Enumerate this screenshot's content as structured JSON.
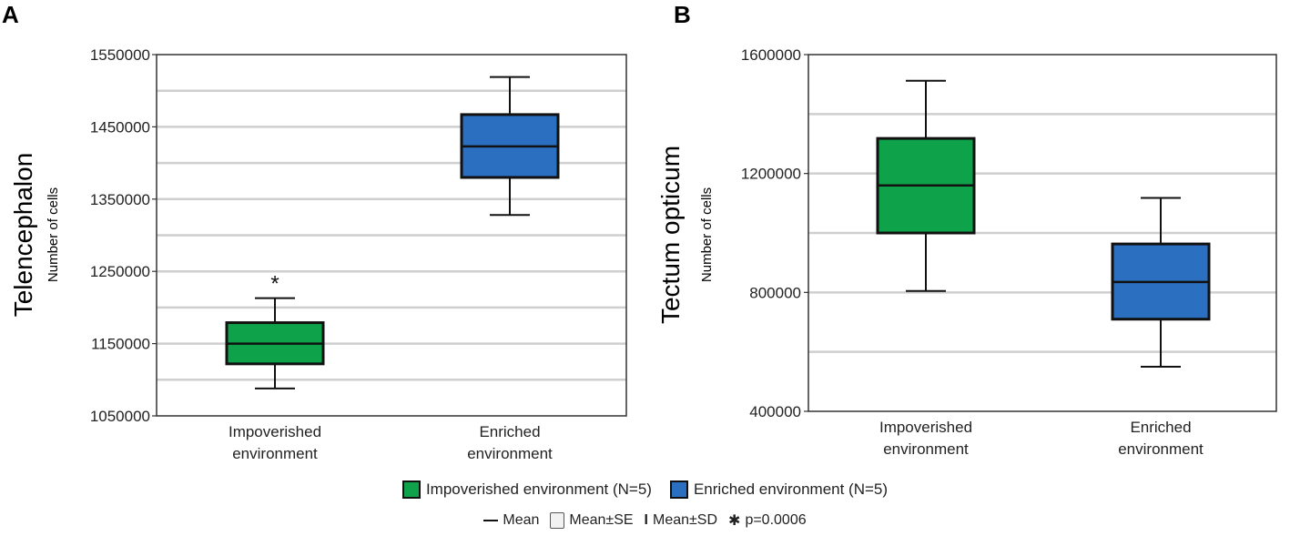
{
  "panels": [
    {
      "letter": "A",
      "region_label": "Telencephalon",
      "ylabel": "Number of cells",
      "chart_data": {
        "type": "box",
        "title": "Telencephalon",
        "ylabel": "Number of cells",
        "ylim": [
          1050000,
          1550000
        ],
        "y_ticks": [
          1050000,
          1150000,
          1250000,
          1350000,
          1450000,
          1550000
        ],
        "y_tick_labels": [
          "1050000",
          "1150000",
          "1250000",
          "1350000",
          "1450000",
          "1550000"
        ],
        "gridline_step": 50000,
        "categories": [
          "Impoverished environment",
          "Enriched environment"
        ],
        "category_lines": [
          [
            "Impoverished",
            "environment"
          ],
          [
            "Enriched",
            "environment"
          ]
        ],
        "series": [
          {
            "name": "Impoverished environment",
            "color": "#0ea34a",
            "mean": 1150000,
            "se_low": 1122000,
            "se_high": 1179000,
            "sd_low": 1088000,
            "sd_high": 1213000,
            "annotation": "*"
          },
          {
            "name": "Enriched environment",
            "color": "#2a6fc0",
            "mean": 1423000,
            "se_low": 1380000,
            "se_high": 1467000,
            "sd_low": 1328000,
            "sd_high": 1519000,
            "annotation": ""
          }
        ]
      }
    },
    {
      "letter": "B",
      "region_label": "Tectum opticum",
      "ylabel": "Number of cells",
      "chart_data": {
        "type": "box",
        "title": "Tectum opticum",
        "ylabel": "Number of cells",
        "ylim": [
          400000,
          1600000
        ],
        "y_ticks": [
          400000,
          800000,
          1200000,
          1600000
        ],
        "y_tick_labels": [
          "400000",
          "800000",
          "1200000",
          "1600000"
        ],
        "gridline_step": 200000,
        "categories": [
          "Impoverished environment",
          "Enriched environment"
        ],
        "category_lines": [
          [
            "Impoverished",
            "environment"
          ],
          [
            "Enriched",
            "environment"
          ]
        ],
        "series": [
          {
            "name": "Impoverished environment",
            "color": "#0ea34a",
            "mean": 1160000,
            "se_low": 1000000,
            "se_high": 1318000,
            "sd_low": 805000,
            "sd_high": 1512000,
            "annotation": ""
          },
          {
            "name": "Enriched environment",
            "color": "#2a6fc0",
            "mean": 835000,
            "se_low": 710000,
            "se_high": 963000,
            "sd_low": 550000,
            "sd_high": 1118000,
            "annotation": ""
          }
        ]
      }
    }
  ],
  "legend": {
    "items": [
      {
        "label": "Impoverished environment (N=5)",
        "color": "#0ea34a"
      },
      {
        "label": "Enriched environment (N=5)",
        "color": "#2a6fc0"
      }
    ],
    "mean_label": "Mean",
    "se_label": "Mean±SE",
    "sd_label": "Mean±SD",
    "sd_glyph": "I",
    "star_glyph": "✱",
    "pvalue_label": "p=0.0006"
  }
}
